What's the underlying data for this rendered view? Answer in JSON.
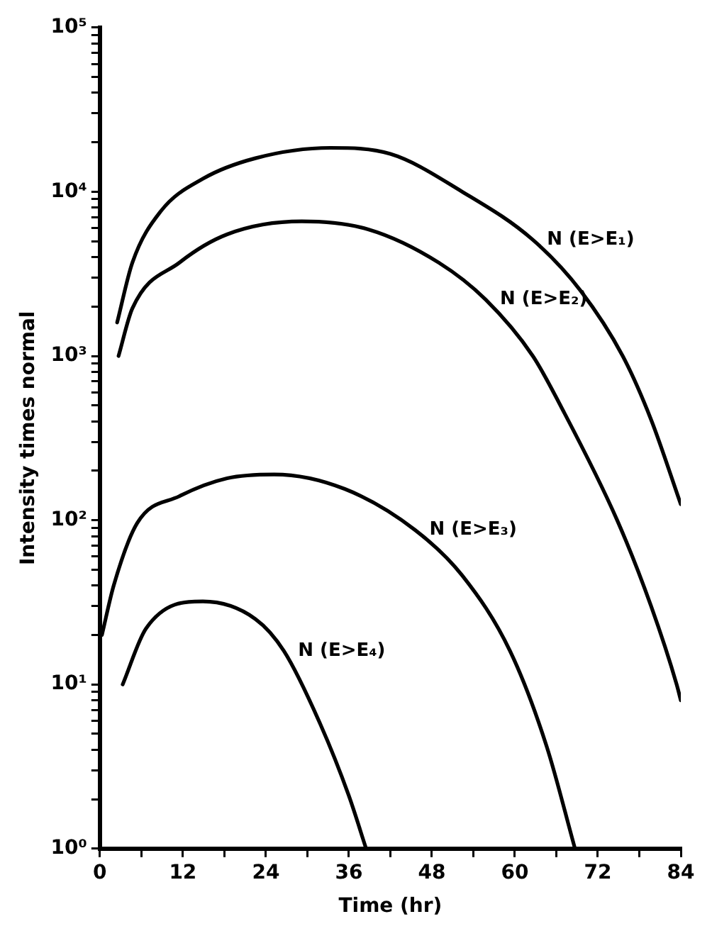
{
  "chart_data": {
    "type": "line",
    "xlabel": "Time (hr)",
    "ylabel": "Intensity times normal",
    "log": "y",
    "grid": false,
    "legend": false,
    "marker": "none",
    "line_style": "solid",
    "xlim": [
      0,
      84
    ],
    "xticks": [
      0,
      {
        "value": 6,
        "label": null
      },
      12,
      {
        "value": 18,
        "label": null
      },
      24,
      {
        "value": 30,
        "label": null
      },
      36,
      {
        "value": 42,
        "label": null
      },
      48,
      {
        "value": 54,
        "label": null
      },
      60,
      {
        "value": 66,
        "label": null
      },
      72,
      {
        "value": 78,
        "label": null
      },
      84
    ],
    "ylim": [
      1,
      100000
    ],
    "yticks": [
      {
        "value": 1,
        "label": "10⁰"
      },
      {
        "value": 2,
        "label": null
      },
      {
        "value": 3,
        "label": null
      },
      {
        "value": 4,
        "label": null
      },
      {
        "value": 5,
        "label": null
      },
      {
        "value": 6,
        "label": null
      },
      {
        "value": 7,
        "label": null
      },
      {
        "value": 8,
        "label": null
      },
      {
        "value": 9,
        "label": null
      },
      {
        "value": 10,
        "label": "10¹"
      },
      {
        "value": 20,
        "label": null
      },
      {
        "value": 30,
        "label": null
      },
      {
        "value": 40,
        "label": null
      },
      {
        "value": 50,
        "label": null
      },
      {
        "value": 60,
        "label": null
      },
      {
        "value": 70,
        "label": null
      },
      {
        "value": 80,
        "label": null
      },
      {
        "value": 90,
        "label": null
      },
      {
        "value": 100,
        "label": "10²"
      },
      {
        "value": 200,
        "label": null
      },
      {
        "value": 300,
        "label": null
      },
      {
        "value": 400,
        "label": null
      },
      {
        "value": 500,
        "label": null
      },
      {
        "value": 600,
        "label": null
      },
      {
        "value": 700,
        "label": null
      },
      {
        "value": 800,
        "label": null
      },
      {
        "value": 900,
        "label": null
      },
      {
        "value": 1000,
        "label": "10³"
      },
      {
        "value": 2000,
        "label": null
      },
      {
        "value": 3000,
        "label": null
      },
      {
        "value": 4000,
        "label": null
      },
      {
        "value": 5000,
        "label": null
      },
      {
        "value": 6000,
        "label": null
      },
      {
        "value": 7000,
        "label": null
      },
      {
        "value": 8000,
        "label": null
      },
      {
        "value": 9000,
        "label": null
      },
      {
        "value": 10000,
        "label": "10⁴"
      },
      {
        "value": 20000,
        "label": null
      },
      {
        "value": 30000,
        "label": null
      },
      {
        "value": 40000,
        "label": null
      },
      {
        "value": 50000,
        "label": null
      },
      {
        "value": 60000,
        "label": null
      },
      {
        "value": 70000,
        "label": null
      },
      {
        "value": 80000,
        "label": null
      },
      {
        "value": 90000,
        "label": null
      },
      {
        "value": 100000,
        "label": "10⁵"
      }
    ],
    "series": [
      {
        "name": "N (E>E₁)",
        "color": "#000000",
        "x": [
          2.5,
          4.7,
          8.8,
          14.9,
          22.5,
          33.3,
          42,
          52.4,
          62.6,
          69.5,
          75.6,
          79.7,
          84
        ],
        "values": [
          1600,
          3700,
          7600,
          12000,
          16000,
          18500,
          17000,
          10000,
          5100,
          2500,
          1000,
          410,
          125
        ]
      },
      {
        "name": "N (E>E₂)",
        "color": "#000000",
        "x": [
          2.7,
          4.7,
          11.5,
          18.4,
          29.2,
          38.8,
          49,
          55.8,
          62.6,
          66.7,
          74.8,
          79.7,
          83.4,
          84
        ],
        "values": [
          1000,
          1950,
          3700,
          5500,
          6600,
          5900,
          3700,
          2200,
          1000,
          490,
          100,
          30,
          10,
          8
        ]
      },
      {
        "name": "N (E>E₃)",
        "color": "#000000",
        "x": [
          0.3,
          2,
          5.4,
          11.5,
          18.4,
          25.2,
          35.4,
          45.6,
          52.4,
          59.3,
          64.6,
          68.7
        ],
        "values": [
          20,
          40,
          96,
          140,
          180,
          190,
          155,
          87,
          46,
          16,
          4.2,
          1
        ]
      },
      {
        "name": "N (E>E₄)",
        "color": "#000000",
        "x": [
          3.3,
          6.7,
          14.9,
          22.5,
          26.6,
          31.9,
          36,
          38.5
        ],
        "values": [
          10,
          22,
          32,
          25,
          16,
          5.7,
          2.1,
          1
        ]
      }
    ]
  }
}
